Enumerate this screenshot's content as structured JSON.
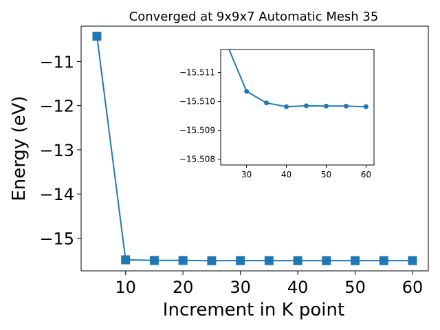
{
  "chart_data": [
    {
      "type": "line",
      "title": "Converged at 9x9x7 Automatic Mesh 35",
      "xlabel": "Increment in K point",
      "ylabel": "Energy (eV)",
      "xlim": [
        2.25,
        62.75
      ],
      "ylim": [
        -15.74,
        -10.2
      ],
      "xticks": [
        "10",
        "20",
        "30",
        "40",
        "50",
        "60"
      ],
      "yticks": [
        "−11",
        "−12",
        "−13",
        "−14",
        "−15"
      ],
      "marker": "square",
      "color": "#1f77b4",
      "series": [
        {
          "x": [
            5,
            10,
            15,
            20,
            25,
            30,
            35,
            40,
            45,
            50,
            55,
            60
          ],
          "y": [
            -10.43,
            -15.49,
            -15.503,
            -15.504,
            -15.51,
            -15.507,
            -15.5075,
            -15.508,
            -15.5078,
            -15.508,
            -15.508,
            -15.508
          ]
        }
      ]
    },
    {
      "type": "line",
      "title": "",
      "xlim": [
        23.5,
        62
      ],
      "ylim": [
        -15.5118,
        -15.5078
      ],
      "xticks": [
        "30",
        "40",
        "50",
        "60"
      ],
      "yticks": [
        "−15.511",
        "−15.510",
        "−15.509",
        "−15.508"
      ],
      "y_axis_inverted": true,
      "marker": "circle",
      "color": "#1f77b4",
      "series": [
        {
          "x": [
            25,
            30,
            35,
            40,
            45,
            50,
            55,
            60
          ],
          "y": [
            -15.512,
            -15.51035,
            -15.50995,
            -15.50982,
            -15.50985,
            -15.50984,
            -15.50984,
            -15.50982
          ]
        }
      ]
    }
  ]
}
